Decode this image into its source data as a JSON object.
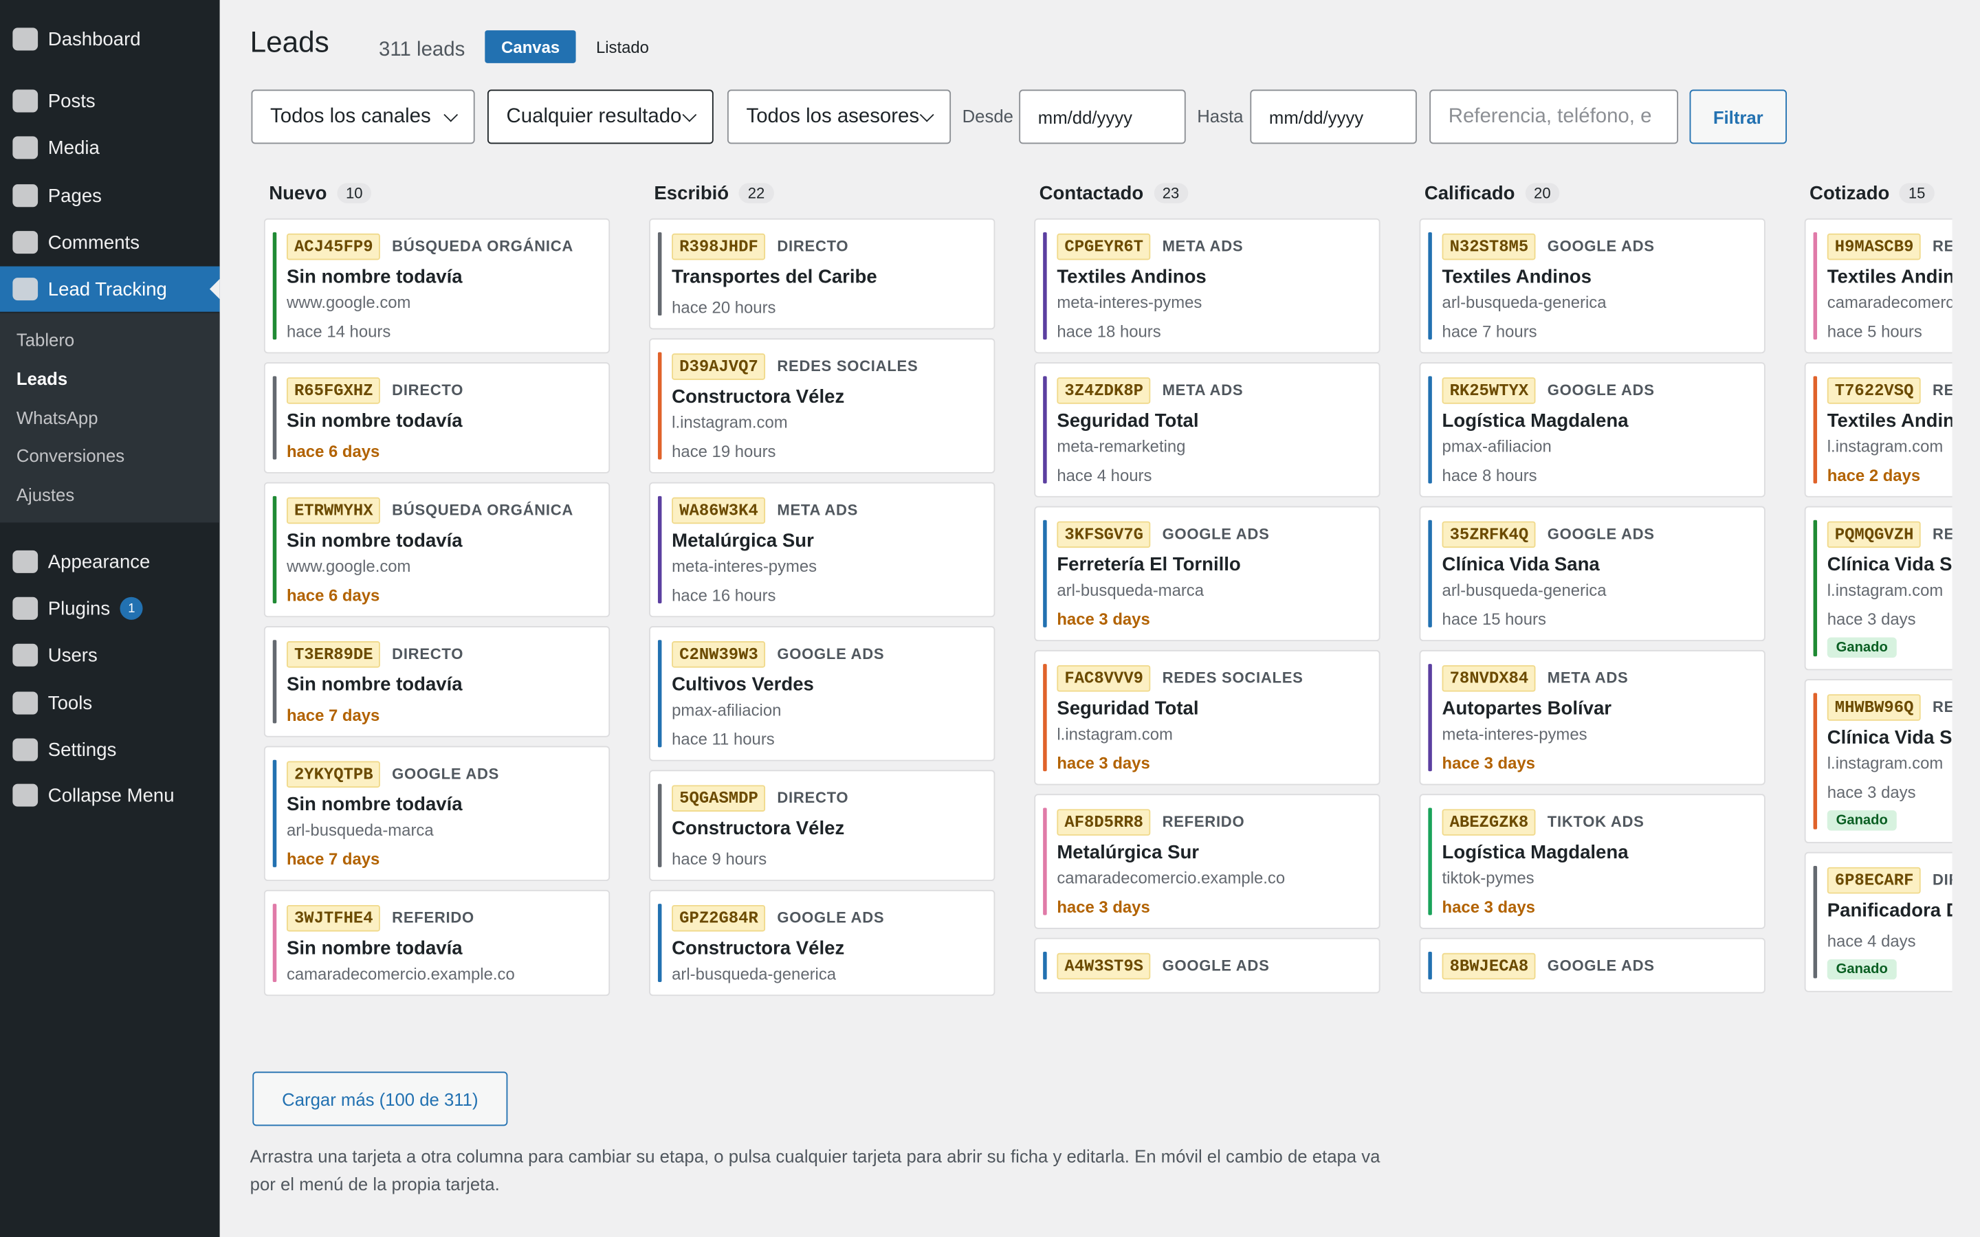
{
  "sidebar": {
    "items": [
      {
        "label": "Dashboard"
      },
      {
        "label": "Posts"
      },
      {
        "label": "Media"
      },
      {
        "label": "Pages"
      },
      {
        "label": "Comments"
      },
      {
        "label": "Lead Tracking",
        "active": true,
        "submenu": [
          {
            "label": "Tablero"
          },
          {
            "label": "Leads",
            "current": true
          },
          {
            "label": "WhatsApp"
          },
          {
            "label": "Conversiones"
          },
          {
            "label": "Ajustes"
          }
        ]
      },
      {
        "label": "Appearance"
      },
      {
        "label": "Plugins",
        "badge": "1"
      },
      {
        "label": "Users"
      },
      {
        "label": "Tools"
      },
      {
        "label": "Settings"
      },
      {
        "label": "Collapse Menu"
      }
    ]
  },
  "header": {
    "title": "Leads",
    "count": "311 leads",
    "tabs": [
      {
        "label": "Canvas",
        "active": true
      },
      {
        "label": "Listado"
      }
    ]
  },
  "filters": {
    "channel": "Todos los canales",
    "result": "Cualquier resultado",
    "advisor": "Todos los asesores",
    "from_label": "Desde",
    "from": "mm/dd/yyyy",
    "to_label": "Hasta",
    "to": "mm/dd/yyyy",
    "search": "Referencia, teléfono, e",
    "button": "Filtrar"
  },
  "columns": [
    {
      "title": "Nuevo",
      "count": "10",
      "cards": [
        {
          "code": "ACJ45FP9",
          "channel": "BÚSQUEDA ORGÁNICA",
          "color": "#1f8a34",
          "name": "Sin nombre todavía",
          "source": "www.google.com",
          "age": "hace 14 hours"
        },
        {
          "code": "R65FGXHZ",
          "channel": "DIRECTO",
          "color": "#646970",
          "name": "Sin nombre todavía",
          "age": "hace 6 days",
          "stale": true
        },
        {
          "code": "ETRWMYHX",
          "channel": "BÚSQUEDA ORGÁNICA",
          "color": "#1f8a34",
          "name": "Sin nombre todavía",
          "source": "www.google.com",
          "age": "hace 6 days",
          "stale": true
        },
        {
          "code": "T3ER89DE",
          "channel": "DIRECTO",
          "color": "#646970",
          "name": "Sin nombre todavía",
          "age": "hace 7 days",
          "stale": true
        },
        {
          "code": "2YKYQTPB",
          "channel": "GOOGLE ADS",
          "color": "#2271b1",
          "name": "Sin nombre todavía",
          "source": "arl-busqueda-marca",
          "age": "hace 7 days",
          "stale": true
        },
        {
          "code": "3WJTFHE4",
          "channel": "REFERIDO",
          "color": "#e07aa8",
          "name": "Sin nombre todavía",
          "source": "camaradecomercio.example.co"
        }
      ]
    },
    {
      "title": "Escribió",
      "count": "22",
      "cards": [
        {
          "code": "R398JHDF",
          "channel": "DIRECTO",
          "color": "#646970",
          "name": "Transportes del Caribe",
          "age": "hace 20 hours"
        },
        {
          "code": "D39AJVQ7",
          "channel": "REDES SOCIALES",
          "color": "#e0622a",
          "name": "Constructora Vélez",
          "source": "l.instagram.com",
          "age": "hace 19 hours"
        },
        {
          "code": "WA86W3K4",
          "channel": "META ADS",
          "color": "#5b3fa0",
          "name": "Metalúrgica Sur",
          "source": "meta-interes-pymes",
          "age": "hace 16 hours"
        },
        {
          "code": "C2NW39W3",
          "channel": "GOOGLE ADS",
          "color": "#2271b1",
          "name": "Cultivos Verdes",
          "source": "pmax-afiliacion",
          "age": "hace 11 hours"
        },
        {
          "code": "5QGASMDP",
          "channel": "DIRECTO",
          "color": "#646970",
          "name": "Constructora Vélez",
          "age": "hace 9 hours"
        },
        {
          "code": "GPZ2G84R",
          "channel": "GOOGLE ADS",
          "color": "#2271b1",
          "name": "Constructora Vélez",
          "source": "arl-busqueda-generica"
        }
      ]
    },
    {
      "title": "Contactado",
      "count": "23",
      "cards": [
        {
          "code": "CPGEYR6T",
          "channel": "META ADS",
          "color": "#5b3fa0",
          "name": "Textiles Andinos",
          "source": "meta-interes-pymes",
          "age": "hace 18 hours"
        },
        {
          "code": "3Z4ZDK8P",
          "channel": "META ADS",
          "color": "#5b3fa0",
          "name": "Seguridad Total",
          "source": "meta-remarketing",
          "age": "hace 4 hours"
        },
        {
          "code": "3KFSGV7G",
          "channel": "GOOGLE ADS",
          "color": "#2271b1",
          "name": "Ferretería El Tornillo",
          "source": "arl-busqueda-marca",
          "age": "hace 3 days",
          "stale": true
        },
        {
          "code": "FAC8VVV9",
          "channel": "REDES SOCIALES",
          "color": "#e0622a",
          "name": "Seguridad Total",
          "source": "l.instagram.com",
          "age": "hace 3 days",
          "stale": true
        },
        {
          "code": "AF8D5RR8",
          "channel": "REFERIDO",
          "color": "#e07aa8",
          "name": "Metalúrgica Sur",
          "source": "camaradecomercio.example.co",
          "age": "hace 3 days",
          "stale": true
        },
        {
          "code": "A4W3ST9S",
          "channel": "GOOGLE ADS",
          "color": "#2271b1"
        }
      ]
    },
    {
      "title": "Calificado",
      "count": "20",
      "cards": [
        {
          "code": "N32ST8M5",
          "channel": "GOOGLE ADS",
          "color": "#2271b1",
          "name": "Textiles Andinos",
          "source": "arl-busqueda-generica",
          "age": "hace 7 hours"
        },
        {
          "code": "RK25WTYX",
          "channel": "GOOGLE ADS",
          "color": "#2271b1",
          "name": "Logística Magdalena",
          "source": "pmax-afiliacion",
          "age": "hace 8 hours"
        },
        {
          "code": "35ZRFK4Q",
          "channel": "GOOGLE ADS",
          "color": "#2271b1",
          "name": "Clínica Vida Sana",
          "source": "arl-busqueda-generica",
          "age": "hace 15 hours"
        },
        {
          "code": "78NVDX84",
          "channel": "META ADS",
          "color": "#5b3fa0",
          "name": "Autopartes Bolívar",
          "source": "meta-interes-pymes",
          "age": "hace 3 days",
          "stale": true
        },
        {
          "code": "ABEZGZK8",
          "channel": "TIKTOK ADS",
          "color": "#1aa35a",
          "name": "Logística Magdalena",
          "source": "tiktok-pymes",
          "age": "hace 3 days",
          "stale": true
        },
        {
          "code": "8BWJECA8",
          "channel": "GOOGLE ADS",
          "color": "#2271b1"
        }
      ]
    },
    {
      "title": "Cotizado",
      "count": "15",
      "cards": [
        {
          "code": "H9MASCB9",
          "channel": "REFERIDO",
          "color": "#e07aa8",
          "name": "Textiles Andinos",
          "source": "camaradecomercio.example.co",
          "age": "hace 5 hours"
        },
        {
          "code": "T7622VSQ",
          "channel": "REDES SOCIALES",
          "color": "#e0622a",
          "name": "Textiles Andinos",
          "source": "l.instagram.com",
          "age": "hace 2 days",
          "stale": true
        },
        {
          "code": "PQMQGVZH",
          "channel": "REDES SOCIALES",
          "color": "#1f8a34",
          "name": "Clínica Vida Sana",
          "source": "l.instagram.com",
          "age": "hace 3 days",
          "status": "Ganado"
        },
        {
          "code": "MHWBW96Q",
          "channel": "REDES SOCIALES",
          "color": "#e0622a",
          "name": "Clínica Vida Sana",
          "source": "l.instagram.com",
          "age": "hace 3 days",
          "status": "Ganado"
        },
        {
          "code": "6P8ECARF",
          "channel": "DIRECTO",
          "color": "#646970",
          "name": "Panificadora D",
          "age": "hace 4 days",
          "status": "Ganado"
        }
      ]
    }
  ],
  "load_more": "Cargar más (100 de 311)",
  "footer": "Arrastra una tarjeta a otra columna para cambiar su etapa, o pulsa cualquier tarjeta para abrir su ficha y editarla. En móvil el cambio de etapa va por el menú de la propia tarjeta."
}
